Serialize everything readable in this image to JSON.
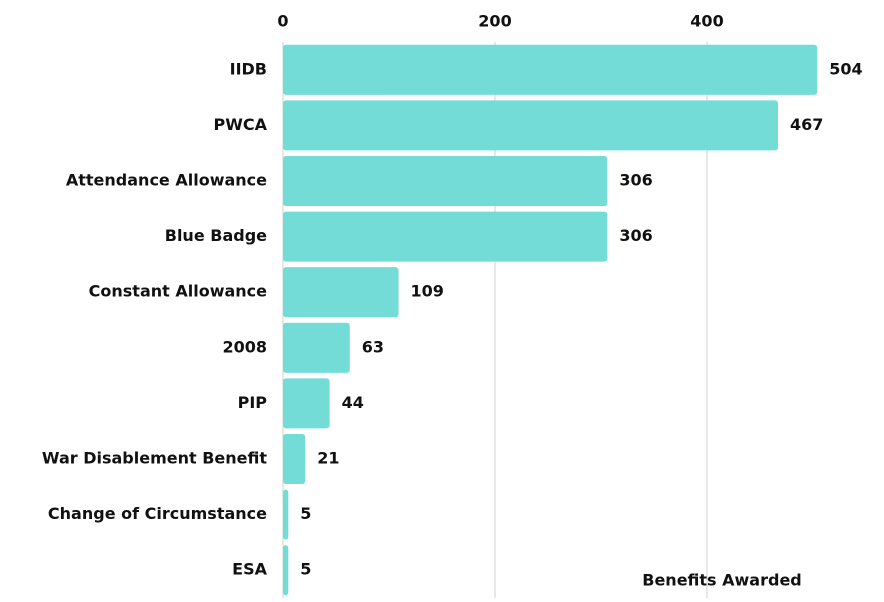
{
  "chart_data": {
    "type": "bar",
    "orientation": "horizontal",
    "categories": [
      "IIDB",
      "PWCA",
      "Attendance Allowance",
      "Blue Badge",
      "Constant Allowance",
      "2008",
      "PIP",
      "War Disablement Benefit",
      "Change of Circumstance",
      "ESA"
    ],
    "values": [
      504,
      467,
      306,
      306,
      109,
      63,
      44,
      21,
      5,
      5
    ],
    "color": "#74dcd6",
    "x_label": "Benefits Awarded",
    "xlim": [
      0,
      560
    ],
    "xticks": [
      0,
      200,
      400
    ],
    "grid": true
  }
}
